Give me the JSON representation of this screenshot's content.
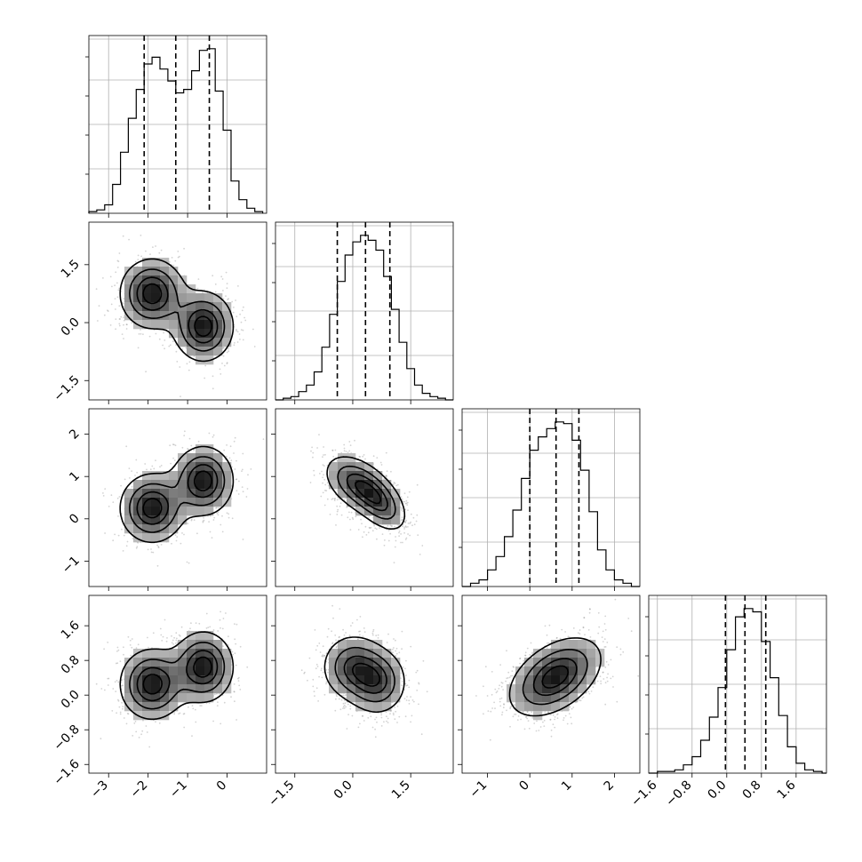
{
  "chart_data": {
    "type": "corner",
    "colors": {
      "ink": "#000000",
      "grid": "#b0b0b0",
      "scatter": "#808080",
      "frame": "#000000"
    },
    "grid": true,
    "parameters": [
      {
        "range": [
          -3.5,
          1.0
        ],
        "ticks": [
          -3,
          -2,
          -1,
          0
        ],
        "tick_labels": [
          "−3",
          "−2",
          "−1",
          "0"
        ]
      },
      {
        "range": [
          -2.0,
          2.6
        ],
        "ticks": [
          -1.5,
          0.0,
          1.5
        ],
        "tick_labels": [
          "−1.5",
          "0.0",
          "1.5"
        ]
      },
      {
        "range": [
          -1.6,
          2.6
        ],
        "ticks": [
          -1,
          0,
          1,
          2
        ],
        "tick_labels": [
          "−1",
          "0",
          "1",
          "2"
        ]
      },
      {
        "range": [
          -1.8,
          2.3
        ],
        "ticks": [
          -1.6,
          -0.8,
          0.0,
          0.8,
          1.6
        ],
        "tick_labels": [
          "−1.6",
          "−0.8",
          "0.0",
          "0.8",
          "1.6"
        ]
      }
    ],
    "histograms": [
      {
        "quantiles": [
          -2.1,
          -1.3,
          -0.45
        ],
        "bin_edges": [
          -3.5,
          -3.3,
          -3.1,
          -2.9,
          -2.7,
          -2.5,
          -2.3,
          -2.1,
          -1.9,
          -1.7,
          -1.5,
          -1.3,
          -1.1,
          -0.9,
          -0.7,
          -0.5,
          -0.3,
          -0.1,
          0.1,
          0.3,
          0.5,
          0.7,
          0.9
        ],
        "counts": [
          0.01,
          0.02,
          0.05,
          0.17,
          0.36,
          0.56,
          0.73,
          0.88,
          0.92,
          0.85,
          0.78,
          0.71,
          0.73,
          0.84,
          0.96,
          0.97,
          0.72,
          0.49,
          0.19,
          0.08,
          0.03,
          0.01
        ]
      },
      {
        "quantiles": [
          -0.4,
          0.33,
          0.96
        ],
        "bin_edges": [
          -2.0,
          -1.8,
          -1.6,
          -1.4,
          -1.2,
          -1.0,
          -0.8,
          -0.6,
          -0.4,
          -0.2,
          0.0,
          0.2,
          0.4,
          0.6,
          0.8,
          1.0,
          1.2,
          1.4,
          1.6,
          1.8,
          2.0,
          2.2,
          2.4,
          2.6
        ],
        "counts": [
          0.0,
          0.01,
          0.02,
          0.05,
          0.09,
          0.17,
          0.32,
          0.52,
          0.72,
          0.88,
          0.96,
          1.0,
          0.97,
          0.91,
          0.75,
          0.55,
          0.35,
          0.19,
          0.09,
          0.04,
          0.02,
          0.01,
          0.0
        ]
      },
      {
        "quantiles": [
          0.0,
          0.62,
          1.16
        ],
        "bin_edges": [
          -1.6,
          -1.4,
          -1.2,
          -1.0,
          -0.8,
          -0.6,
          -0.4,
          -0.2,
          0.0,
          0.2,
          0.4,
          0.6,
          0.8,
          1.0,
          1.2,
          1.4,
          1.6,
          1.8,
          2.0,
          2.2,
          2.4,
          2.6
        ],
        "counts": [
          0.0,
          0.02,
          0.04,
          0.1,
          0.18,
          0.3,
          0.46,
          0.65,
          0.82,
          0.9,
          0.95,
          0.99,
          0.98,
          0.88,
          0.7,
          0.45,
          0.22,
          0.1,
          0.04,
          0.02,
          0.0
        ]
      },
      {
        "quantiles": [
          -0.03,
          0.42,
          0.9
        ],
        "bin_edges": [
          -1.8,
          -1.6,
          -1.4,
          -1.2,
          -1.0,
          -0.8,
          -0.6,
          -0.4,
          -0.2,
          0.0,
          0.2,
          0.4,
          0.6,
          0.8,
          1.0,
          1.2,
          1.4,
          1.6,
          1.8,
          2.0,
          2.2,
          2.3
        ],
        "counts": [
          0.0,
          0.01,
          0.01,
          0.02,
          0.05,
          0.1,
          0.2,
          0.34,
          0.52,
          0.75,
          0.95,
          1.0,
          0.98,
          0.8,
          0.58,
          0.35,
          0.16,
          0.06,
          0.02,
          0.01,
          0.0
        ]
      }
    ],
    "pairs": [
      {
        "row": 1,
        "col": 0,
        "components": [
          {
            "mx": -1.9,
            "my": 0.75,
            "sx": 0.45,
            "sy": 0.5,
            "rho": 0.0,
            "w": 0.5
          },
          {
            "mx": -0.6,
            "my": -0.1,
            "sx": 0.42,
            "sy": 0.5,
            "rho": 0.0,
            "w": 0.5
          }
        ]
      },
      {
        "row": 2,
        "col": 0,
        "components": [
          {
            "mx": -1.9,
            "my": 0.25,
            "sx": 0.45,
            "sy": 0.45,
            "rho": 0.0,
            "w": 0.5
          },
          {
            "mx": -0.6,
            "my": 0.9,
            "sx": 0.42,
            "sy": 0.45,
            "rho": 0.0,
            "w": 0.5
          }
        ]
      },
      {
        "row": 2,
        "col": 1,
        "components": [
          {
            "mx": 0.05,
            "my": 0.85,
            "sx": 0.45,
            "sy": 0.38,
            "rho": -0.4,
            "w": 0.5
          },
          {
            "mx": 0.7,
            "my": 0.4,
            "sx": 0.4,
            "sy": 0.4,
            "rho": -0.5,
            "w": 0.5
          }
        ]
      },
      {
        "row": 3,
        "col": 0,
        "components": [
          {
            "mx": -1.9,
            "my": 0.25,
            "sx": 0.45,
            "sy": 0.45,
            "rho": 0.0,
            "w": 0.5
          },
          {
            "mx": -0.6,
            "my": 0.65,
            "sx": 0.42,
            "sy": 0.45,
            "rho": 0.0,
            "w": 0.5
          }
        ]
      },
      {
        "row": 3,
        "col": 1,
        "components": [
          {
            "mx": 0.0,
            "my": 0.65,
            "sx": 0.45,
            "sy": 0.42,
            "rho": 0.0,
            "w": 0.5
          },
          {
            "mx": 0.65,
            "my": 0.3,
            "sx": 0.42,
            "sy": 0.42,
            "rho": 0.0,
            "w": 0.5
          }
        ]
      },
      {
        "row": 3,
        "col": 2,
        "components": [
          {
            "mx": 0.6,
            "my": 0.42,
            "sx": 0.6,
            "sy": 0.5,
            "rho": 0.45,
            "w": 1.0
          }
        ]
      }
    ],
    "contour_levels": [
      0.2,
      0.45,
      0.7,
      0.88
    ],
    "scatter_points_per_panel": 1100
  }
}
